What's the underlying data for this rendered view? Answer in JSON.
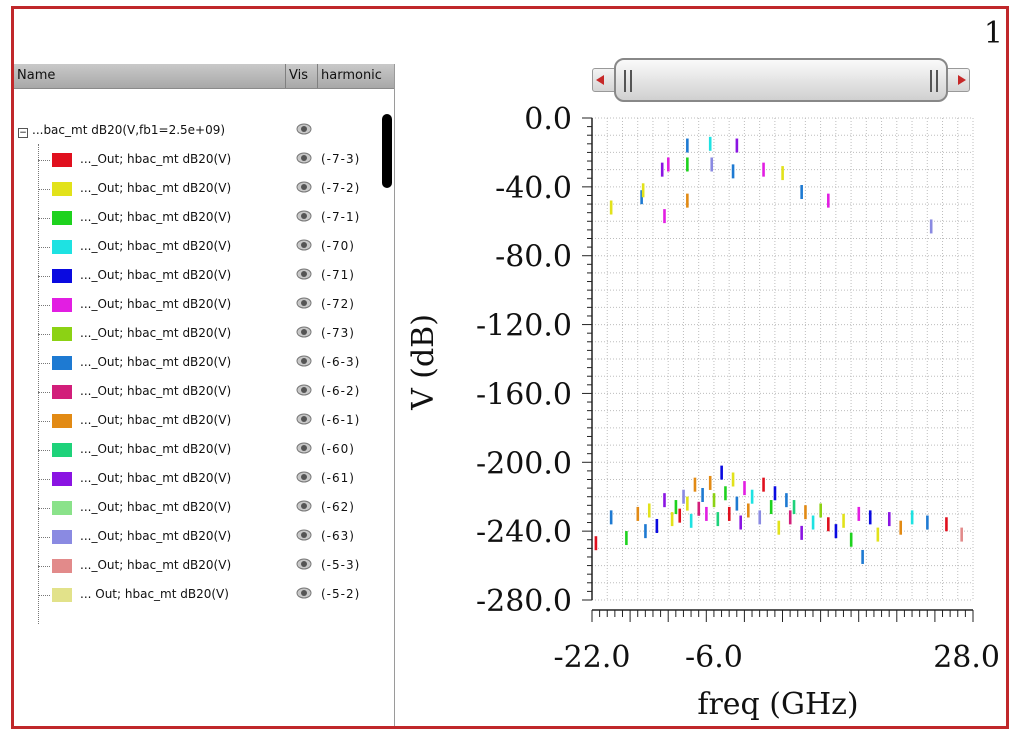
{
  "window_number": "1",
  "browser": {
    "columns": {
      "name": "Name",
      "vis": "Vis",
      "harmonic": "harmonic"
    },
    "root": {
      "label": "...bac_mt dB20(V,fb1=2.5e+09)"
    },
    "rows": [
      {
        "label": "..._Out; hbac_mt dB20(V)",
        "harmonic": "(-7-3)",
        "color": "#e0101e"
      },
      {
        "label": "..._Out; hbac_mt dB20(V)",
        "harmonic": "(-7-2)",
        "color": "#e2e21a"
      },
      {
        "label": "..._Out; hbac_mt dB20(V)",
        "harmonic": "(-7-1)",
        "color": "#1ed21e"
      },
      {
        "label": "..._Out; hbac_mt dB20(V)",
        "harmonic": "(-70)",
        "color": "#1ee2e2"
      },
      {
        "label": "..._Out; hbac_mt dB20(V)",
        "harmonic": "(-71)",
        "color": "#0a0ae0"
      },
      {
        "label": "..._Out; hbac_mt dB20(V)",
        "harmonic": "(-72)",
        "color": "#e21ee2"
      },
      {
        "label": "..._Out; hbac_mt dB20(V)",
        "harmonic": "(-73)",
        "color": "#8cd214"
      },
      {
        "label": "..._Out; hbac_mt dB20(V)",
        "harmonic": "(-6-3)",
        "color": "#1e7ad2"
      },
      {
        "label": "..._Out; hbac_mt dB20(V)",
        "harmonic": "(-6-2)",
        "color": "#d21e7a"
      },
      {
        "label": "..._Out; hbac_mt dB20(V)",
        "harmonic": "(-6-1)",
        "color": "#e28a14"
      },
      {
        "label": "..._Out; hbac_mt dB20(V)",
        "harmonic": "(-60)",
        "color": "#1ed27a"
      },
      {
        "label": "..._Out; hbac_mt dB20(V)",
        "harmonic": "(-61)",
        "color": "#8a14e2"
      },
      {
        "label": "..._Out; hbac_mt dB20(V)",
        "harmonic": "(-62)",
        "color": "#8ae28a"
      },
      {
        "label": "..._Out; hbac_mt dB20(V)",
        "harmonic": "(-63)",
        "color": "#8a8ae2"
      },
      {
        "label": "..._Out; hbac_mt dB20(V)",
        "harmonic": "(-5-3)",
        "color": "#e28a8a"
      },
      {
        "label": "... Out; hbac_mt dB20(V)",
        "harmonic": "(-5-2)",
        "color": "#e2e28a"
      }
    ]
  },
  "chart_data": {
    "type": "scatter",
    "xlabel": "freq (GHz)",
    "ylabel": "V (dB)",
    "xlim": [
      -22.0,
      28.0
    ],
    "ylim": [
      -280.0,
      0.0
    ],
    "xtick_labels": [
      "-22.0",
      "-6.0",
      "28.0"
    ],
    "xticks": [
      -22.0,
      -6.0,
      28.0
    ],
    "ytick_labels": [
      "0.0",
      "-40.0",
      "-80.0",
      "-120.0",
      "-160.0",
      "-200.0",
      "-240.0",
      "-280.0"
    ],
    "yticks": [
      0,
      -40,
      -80,
      -120,
      -160,
      -200,
      -240,
      -280
    ],
    "grid": true,
    "points": [
      {
        "x": -19.5,
        "y": -52,
        "c": "#e2e21a"
      },
      {
        "x": -15.5,
        "y": -46,
        "c": "#1e7ad2"
      },
      {
        "x": -15.3,
        "y": -42,
        "c": "#e2e21a"
      },
      {
        "x": -12.5,
        "y": -57,
        "c": "#e21ee2"
      },
      {
        "x": -12.8,
        "y": -30,
        "c": "#8a14e2"
      },
      {
        "x": -12.0,
        "y": -27,
        "c": "#e21ee2"
      },
      {
        "x": -9.5,
        "y": -48,
        "c": "#e28a14"
      },
      {
        "x": -9.5,
        "y": -27,
        "c": "#1ed21e"
      },
      {
        "x": -9.5,
        "y": -16,
        "c": "#1e7ad2"
      },
      {
        "x": -6.5,
        "y": -15,
        "c": "#1ee2e2"
      },
      {
        "x": -6.3,
        "y": -27,
        "c": "#8a8ae2"
      },
      {
        "x": -3.5,
        "y": -31,
        "c": "#1e7ad2"
      },
      {
        "x": -3.0,
        "y": -16,
        "c": "#8a14e2"
      },
      {
        "x": 0.5,
        "y": -30,
        "c": "#e21ee2"
      },
      {
        "x": 3.0,
        "y": -32,
        "c": "#e2e21a"
      },
      {
        "x": 5.5,
        "y": -43,
        "c": "#1e7ad2"
      },
      {
        "x": 9.0,
        "y": -48,
        "c": "#e21ee2"
      },
      {
        "x": 22.5,
        "y": -63,
        "c": "#8a8ae2"
      },
      {
        "x": -21.5,
        "y": -247,
        "c": "#e0101e"
      },
      {
        "x": -19.5,
        "y": -232,
        "c": "#1e7ad2"
      },
      {
        "x": -17.5,
        "y": -244,
        "c": "#1ed21e"
      },
      {
        "x": -16.0,
        "y": -230,
        "c": "#e28a14"
      },
      {
        "x": -15.0,
        "y": -240,
        "c": "#1e7ad2"
      },
      {
        "x": -14.5,
        "y": -228,
        "c": "#e2e21a"
      },
      {
        "x": -13.5,
        "y": -237,
        "c": "#0a0ae0"
      },
      {
        "x": -12.5,
        "y": -222,
        "c": "#8a14e2"
      },
      {
        "x": -11.5,
        "y": -233,
        "c": "#e2e21a"
      },
      {
        "x": -11.0,
        "y": -226,
        "c": "#1ed21e"
      },
      {
        "x": -10.5,
        "y": -231,
        "c": "#e0101e"
      },
      {
        "x": -10.0,
        "y": -220,
        "c": "#8a8ae2"
      },
      {
        "x": -9.5,
        "y": -224,
        "c": "#e2e21a"
      },
      {
        "x": -9.0,
        "y": -234,
        "c": "#1ee2e2"
      },
      {
        "x": -8.5,
        "y": -213,
        "c": "#e28a14"
      },
      {
        "x": -8.0,
        "y": -227,
        "c": "#d21e7a"
      },
      {
        "x": -7.5,
        "y": -219,
        "c": "#1e7ad2"
      },
      {
        "x": -7.0,
        "y": -230,
        "c": "#e21ee2"
      },
      {
        "x": -6.5,
        "y": -212,
        "c": "#e28a14"
      },
      {
        "x": -6.0,
        "y": -222,
        "c": "#8cd214"
      },
      {
        "x": -5.5,
        "y": -233,
        "c": "#1ed27a"
      },
      {
        "x": -5.0,
        "y": -206,
        "c": "#0a0ae0"
      },
      {
        "x": -4.5,
        "y": -218,
        "c": "#1ed21e"
      },
      {
        "x": -4.0,
        "y": -230,
        "c": "#e0101e"
      },
      {
        "x": -3.5,
        "y": -210,
        "c": "#e2e21a"
      },
      {
        "x": -3.0,
        "y": -224,
        "c": "#1e7ad2"
      },
      {
        "x": -2.5,
        "y": -235,
        "c": "#8a14e2"
      },
      {
        "x": -2.0,
        "y": -215,
        "c": "#e21ee2"
      },
      {
        "x": -1.5,
        "y": -228,
        "c": "#e28a14"
      },
      {
        "x": -1.0,
        "y": -220,
        "c": "#1ee2e2"
      },
      {
        "x": 0.0,
        "y": -232,
        "c": "#8a8ae2"
      },
      {
        "x": 0.5,
        "y": -213,
        "c": "#e0101e"
      },
      {
        "x": 1.5,
        "y": -226,
        "c": "#1ed21e"
      },
      {
        "x": 2.0,
        "y": -218,
        "c": "#0a0ae0"
      },
      {
        "x": 2.5,
        "y": -238,
        "c": "#e2e21a"
      },
      {
        "x": 3.5,
        "y": -222,
        "c": "#1e7ad2"
      },
      {
        "x": 4.0,
        "y": -232,
        "c": "#d21e7a"
      },
      {
        "x": 4.5,
        "y": -226,
        "c": "#1ed27a"
      },
      {
        "x": 5.5,
        "y": -241,
        "c": "#8a14e2"
      },
      {
        "x": 6.0,
        "y": -229,
        "c": "#e28a14"
      },
      {
        "x": 7.0,
        "y": -235,
        "c": "#1ee2e2"
      },
      {
        "x": 8.0,
        "y": -228,
        "c": "#8cd214"
      },
      {
        "x": 9.0,
        "y": -236,
        "c": "#e0101e"
      },
      {
        "x": 10.0,
        "y": -240,
        "c": "#0a0ae0"
      },
      {
        "x": 11.0,
        "y": -234,
        "c": "#e2e21a"
      },
      {
        "x": 12.0,
        "y": -245,
        "c": "#1ed21e"
      },
      {
        "x": 13.0,
        "y": -230,
        "c": "#e21ee2"
      },
      {
        "x": 13.5,
        "y": -255,
        "c": "#1e7ad2"
      },
      {
        "x": 14.5,
        "y": -232,
        "c": "#0a0ae0"
      },
      {
        "x": 15.5,
        "y": -242,
        "c": "#e2e21a"
      },
      {
        "x": 17.0,
        "y": -233,
        "c": "#8a14e2"
      },
      {
        "x": 18.5,
        "y": -238,
        "c": "#e28a14"
      },
      {
        "x": 20.0,
        "y": -232,
        "c": "#1ee2e2"
      },
      {
        "x": 22.0,
        "y": -235,
        "c": "#1e7ad2"
      },
      {
        "x": 24.5,
        "y": -236,
        "c": "#e0101e"
      },
      {
        "x": 26.5,
        "y": -242,
        "c": "#e28a8a"
      }
    ]
  }
}
